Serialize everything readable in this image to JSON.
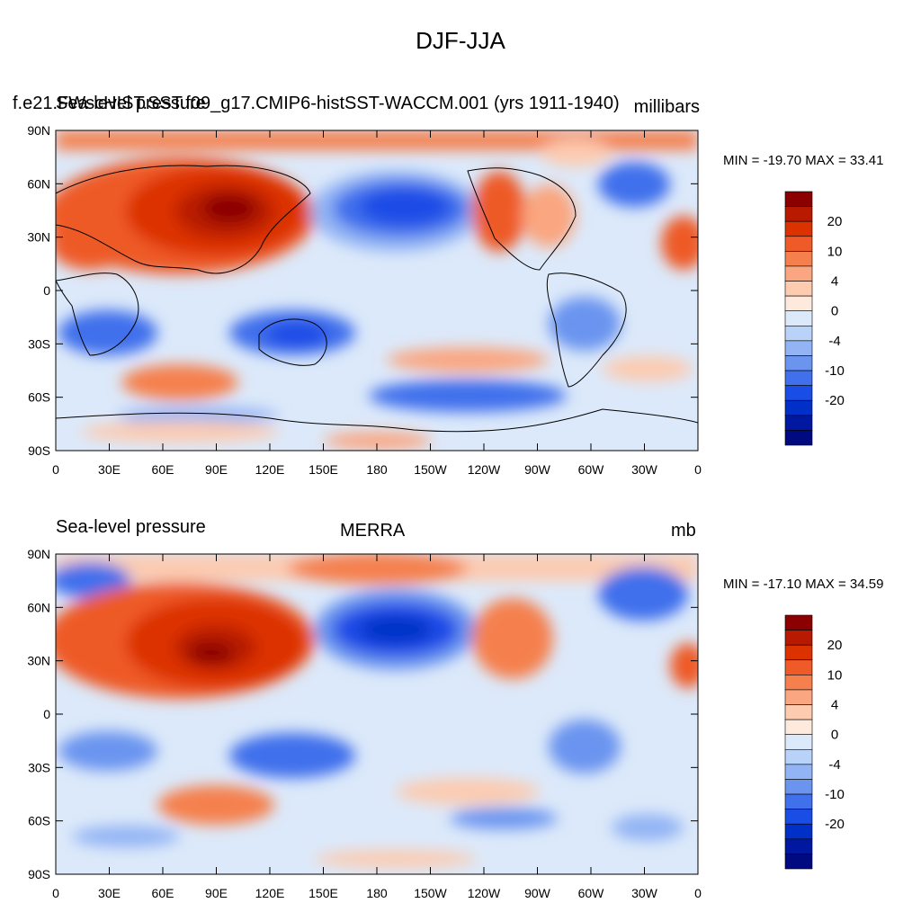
{
  "page_title": "DJF-JJA",
  "panels": [
    {
      "left_label": "Sea-level pressure",
      "center_label": "f.e21.FWscHIST.SST.f09_g17.CMIP6-histSST-WACCM.001 (yrs 1911-1940)",
      "right_label": "millibars",
      "stats": "MIN = -19.70 MAX =  33.41"
    },
    {
      "left_label": "Sea-level pressure",
      "center_label": "MERRA",
      "right_label": "mb",
      "stats": "MIN = -17.10 MAX =  34.59"
    }
  ],
  "lat_ticks": [
    "90N",
    "60N",
    "30N",
    "0",
    "30S",
    "60S",
    "90S"
  ],
  "lon_ticks": [
    "0",
    "30E",
    "60E",
    "90E",
    "120E",
    "150E",
    "180",
    "150W",
    "120W",
    "90W",
    "60W",
    "30W",
    "0"
  ],
  "colorbar": {
    "labels": [
      "20",
      "10",
      "4",
      "0",
      "-4",
      "-10",
      "-20"
    ],
    "colors": [
      "#8b0000",
      "#b81a00",
      "#dc3200",
      "#ee5a28",
      "#f5804e",
      "#faa680",
      "#fccbb0",
      "#feeadc",
      "#dce9fa",
      "#b9d2f7",
      "#93b4f4",
      "#6b94ef",
      "#4070ec",
      "#1a4ce6",
      "#0030c8",
      "#0018a0",
      "#000a80"
    ]
  },
  "colors": {
    "ocean_neutral": "#dce9fa",
    "coastline": "#000000"
  }
}
